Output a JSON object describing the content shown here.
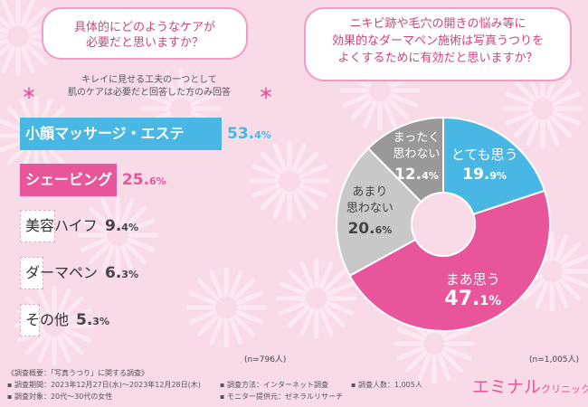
{
  "left_question": [
    "具体的にどのようなケアが",
    "必要だと思いますか？"
  ],
  "right_question": [
    "ニキビ跡や毛穴の開きの悩み等に",
    "効果的なダーマペン施術は写真うつりを",
    "よくするために有効だと思いますか？"
  ],
  "left_note": [
    "キレイに見せる工夫の一つとして",
    "肌のケアは必要だと回答した方のみ回答"
  ],
  "left_n": "(n=796人)",
  "right_n": "(n=1,005人)",
  "colors": {
    "blue": "#48b7e4",
    "pink": "#e8559a",
    "gray_dark": "#999999",
    "gray_light": "#c8c8c8"
  },
  "chart_data": [
    {
      "type": "bar",
      "orientation": "horizontal",
      "categories": [
        "小顔マッサージ・エステ",
        "シェービング",
        "美容ハイフ",
        "ダーマペン",
        "その他"
      ],
      "values": [
        53.4,
        25.6,
        9.4,
        6.3,
        5.3
      ],
      "value_labels": [
        [
          "53.",
          "4%"
        ],
        [
          "25.",
          "6%"
        ],
        [
          "9.",
          "4%"
        ],
        [
          "6.",
          "3%"
        ],
        [
          "5.",
          "3%"
        ]
      ],
      "unit": "%",
      "xlim": [
        0,
        60
      ]
    },
    {
      "type": "pie",
      "categories": [
        "とても思う",
        "まあ思う",
        "あまり思わない",
        "まったく思わない"
      ],
      "label_lines": [
        [
          "とても思う"
        ],
        [
          "まあ思う"
        ],
        [
          "あまり",
          "思わない"
        ],
        [
          "まったく",
          "思わない"
        ]
      ],
      "values": [
        19.9,
        47.1,
        20.6,
        12.4
      ],
      "value_labels": [
        [
          "19.",
          "9%"
        ],
        [
          "47.",
          "1%"
        ],
        [
          "20.",
          "6%"
        ],
        [
          "12.",
          "4%"
        ]
      ],
      "donut": true,
      "start": "top",
      "direction": "clockwise"
    }
  ],
  "footer": {
    "col1": [
      "《調査概要：「写真うつり」に関する調査》",
      "▪ 調査期間：2023年12月27日(水)～2023年12月28日(木)",
      "▪ 調査対象：20代～30代の女性"
    ],
    "col2": [
      "▪ 調査方法：インターネット調査",
      "▪ モニター提供元：ゼネラルリサーチ"
    ],
    "col3": [
      "▪ 調査人数：1,005人"
    ]
  },
  "logo": {
    "main": "エミナル",
    "sub": "クリニック"
  }
}
